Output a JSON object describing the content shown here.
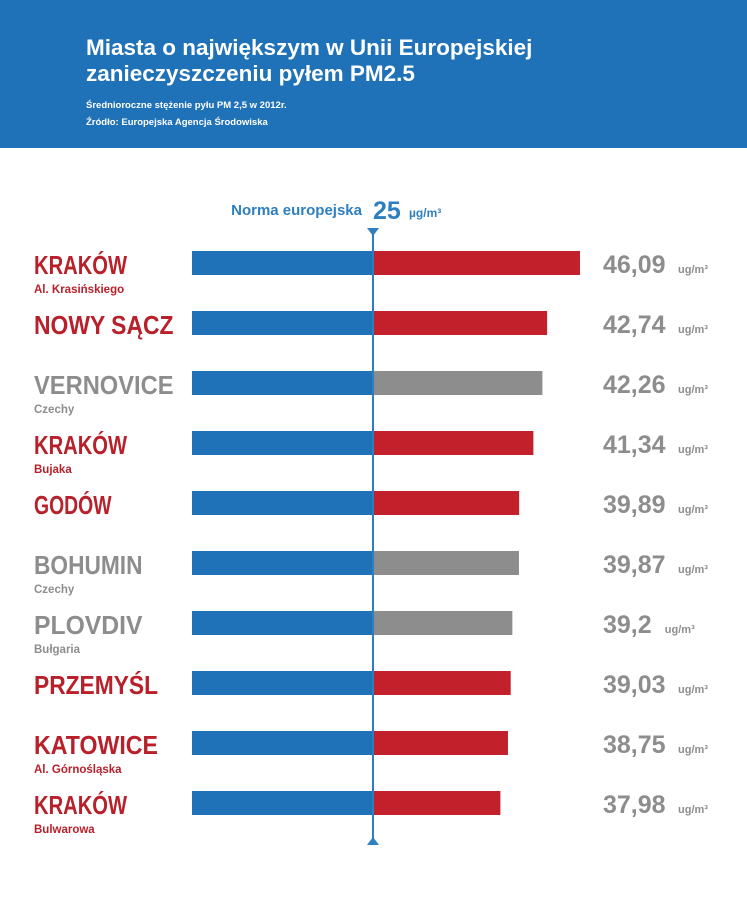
{
  "header": {
    "title_line1": "Miasta o największym w Unii Europejskiej",
    "title_line2": "zanieczyszczeniu pyłem PM2.5",
    "subtitle": "Średnioroczne stężenie pyłu PM 2,5 w 2012r.",
    "source": "Źródło: Europejska Agencja Środowiska"
  },
  "colors": {
    "header_bg": "#1f72b8",
    "bar_blue": "#1f72b8",
    "bar_red": "#c2202a",
    "bar_gray": "#8d8d8d",
    "label_red": "#b8202a",
    "label_gray": "#8d8d8d",
    "value_gray": "#8d8d8d",
    "norm_blue": "#2e7fc0"
  },
  "chart_data": {
    "type": "bar",
    "orientation": "horizontal",
    "norm": {
      "label": "Norma europejska",
      "value": 25,
      "unit": "µg/m³"
    },
    "value_unit": "ug/m³",
    "xlim": [
      0,
      46.09
    ],
    "rows": [
      {
        "name": "KRAKÓW",
        "sub": "Al. Krasińskiego",
        "value": 46.09,
        "value_label": "46,09",
        "highlight": "red"
      },
      {
        "name": "NOWY SĄCZ",
        "sub": "",
        "value": 42.74,
        "value_label": "42,74",
        "highlight": "red"
      },
      {
        "name": "VERNOVICE",
        "sub": "Czechy",
        "value": 42.26,
        "value_label": "42,26",
        "highlight": "gray"
      },
      {
        "name": "KRAKÓW",
        "sub": "Bujaka",
        "value": 41.34,
        "value_label": "41,34",
        "highlight": "red"
      },
      {
        "name": "GODÓW",
        "sub": "",
        "value": 39.89,
        "value_label": "39,89",
        "highlight": "red"
      },
      {
        "name": "BOHUMIN",
        "sub": "Czechy",
        "value": 39.87,
        "value_label": "39,87",
        "highlight": "gray"
      },
      {
        "name": "PLOVDIV",
        "sub": "Bułgaria",
        "value": 39.2,
        "value_label": "39,2",
        "highlight": "gray"
      },
      {
        "name": "PRZEMYŚL",
        "sub": "",
        "value": 39.03,
        "value_label": "39,03",
        "highlight": "red"
      },
      {
        "name": "KATOWICE",
        "sub": "Al. Górnośląska",
        "value": 38.75,
        "value_label": "38,75",
        "highlight": "red"
      },
      {
        "name": "KRAKÓW",
        "sub": "Bulwarowa",
        "value": 37.98,
        "value_label": "37,98",
        "highlight": "red"
      }
    ]
  }
}
